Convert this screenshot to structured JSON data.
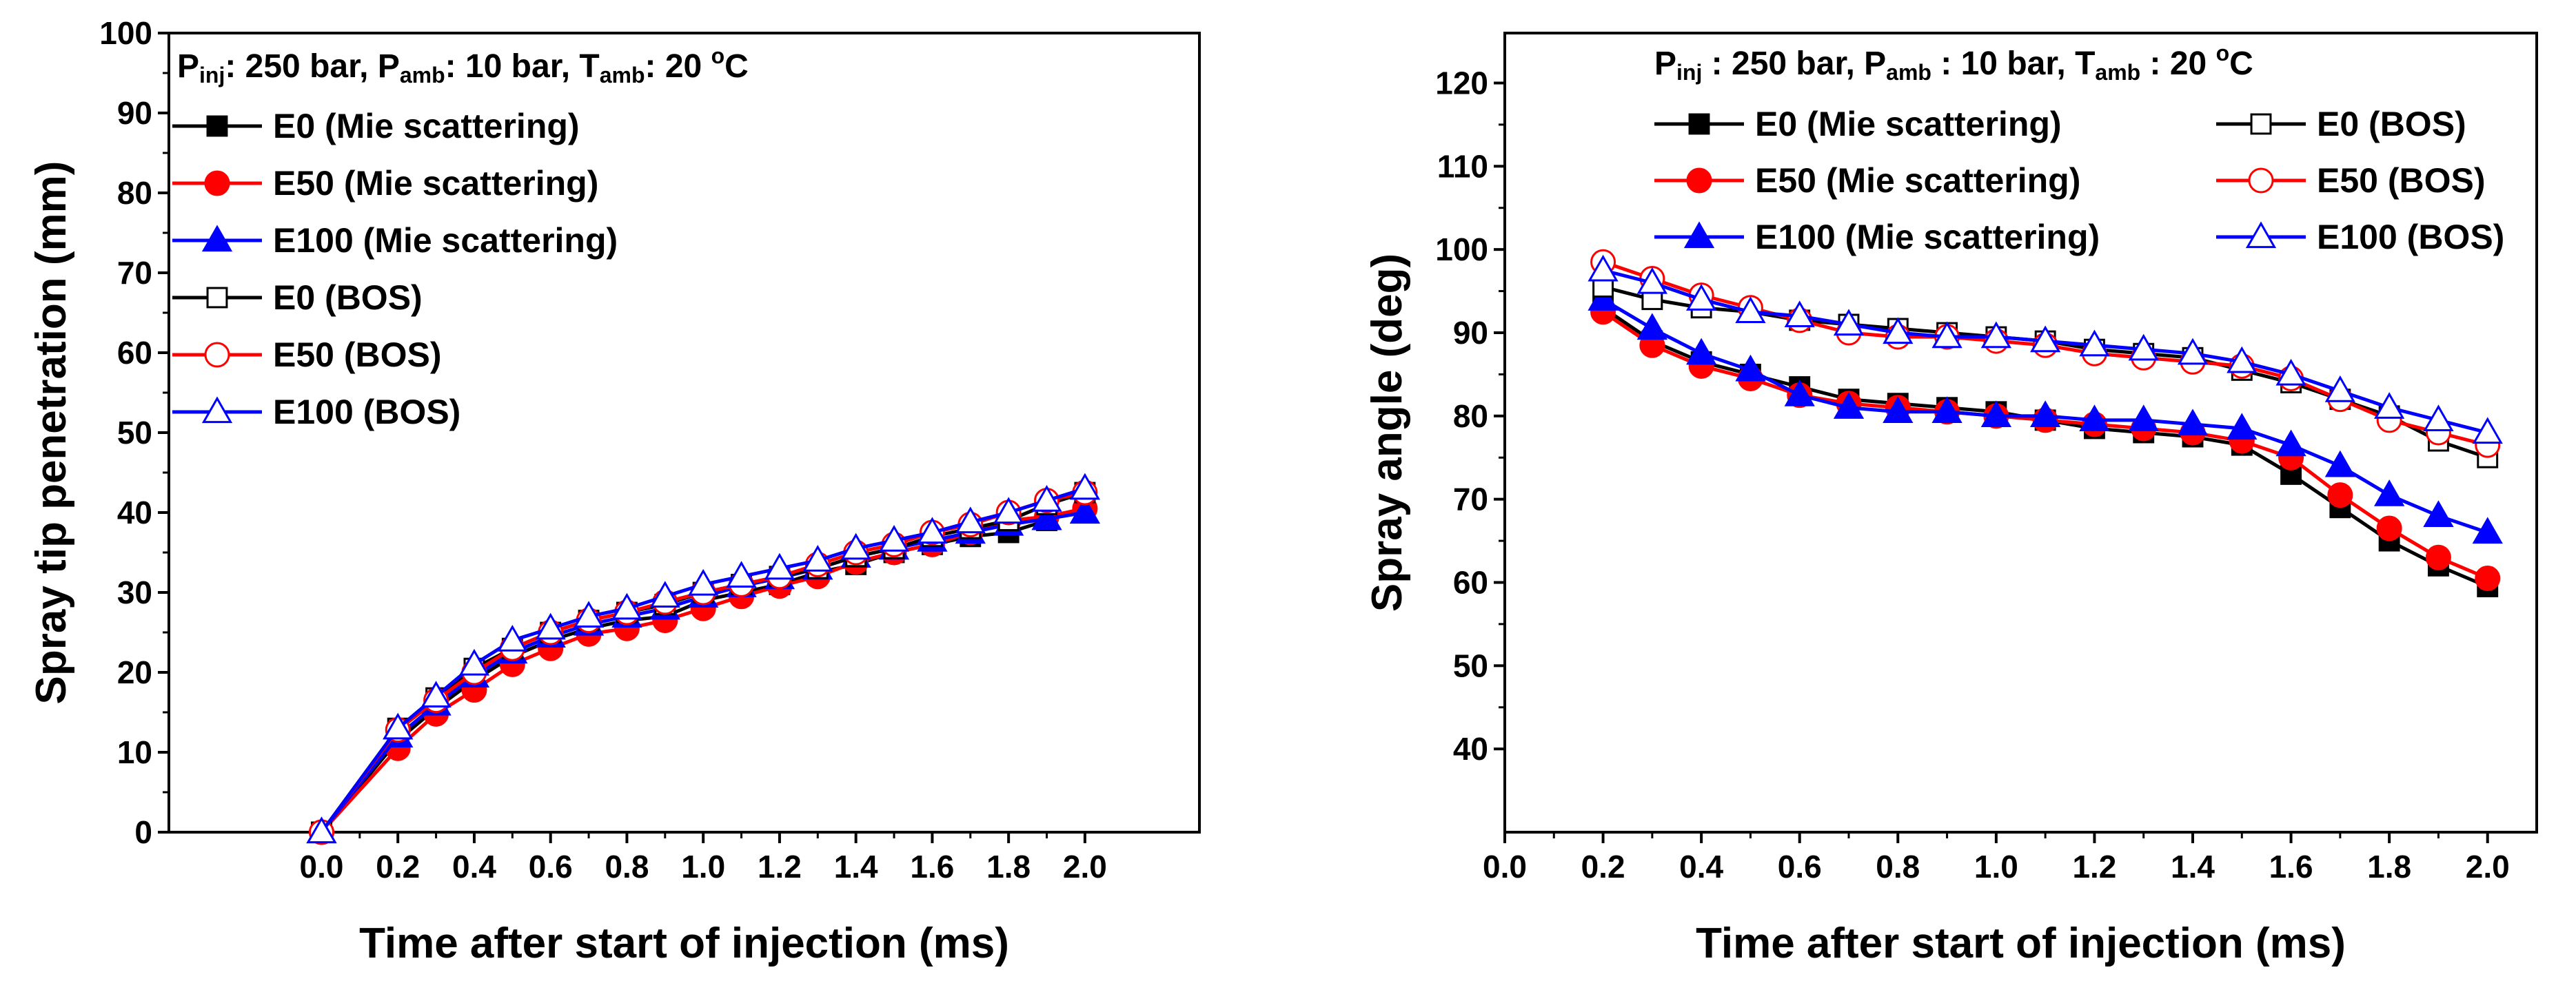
{
  "chart_data": [
    {
      "type": "line",
      "xlabel": "Time after start of injection (ms)",
      "ylabel": "Spray tip penetration (mm)",
      "xlim": [
        -0.4,
        2.3
      ],
      "ylim": [
        0,
        100
      ],
      "xticks": [
        "0.0",
        "0.2",
        "0.4",
        "0.6",
        "0.8",
        "1.0",
        "1.2",
        "1.4",
        "1.6",
        "1.8",
        "2.0"
      ],
      "xtick_values": [
        0,
        0.2,
        0.4,
        0.6,
        0.8,
        1.0,
        1.2,
        1.4,
        1.6,
        1.8,
        2.0
      ],
      "yticks": [
        "0",
        "10",
        "20",
        "30",
        "40",
        "50",
        "60",
        "70",
        "80",
        "90",
        "100"
      ],
      "ytick_values": [
        0,
        10,
        20,
        30,
        40,
        50,
        60,
        70,
        80,
        90,
        100
      ],
      "conditions": {
        "p": "P",
        "p_inj_sub": "inj",
        "text1": ": 250 bar, ",
        "p_amb_sub": "amb",
        "text2": ": 10 bar, ",
        "t": "T",
        "t_amb_sub": "amb",
        "text3": ": 20 ",
        "deg": "o",
        "unit": "C"
      },
      "legend_placement": "top-left",
      "x": [
        0,
        0.2,
        0.3,
        0.4,
        0.5,
        0.6,
        0.7,
        0.8,
        0.9,
        1.0,
        1.1,
        1.2,
        1.3,
        1.4,
        1.5,
        1.6,
        1.7,
        1.8,
        1.9,
        2.0
      ],
      "series": [
        {
          "name": "E0 (Mie scattering)",
          "color": "#000000",
          "marker": "square",
          "filled": true,
          "values": [
            0,
            11.5,
            15.5,
            19,
            22,
            24,
            25.5,
            26.5,
            27,
            29,
            30,
            31,
            32.5,
            33.5,
            35,
            36,
            37,
            37.5,
            39,
            40.5
          ]
        },
        {
          "name": "E50 (Mie scattering)",
          "color": "#ff0000",
          "marker": "circle",
          "filled": true,
          "values": [
            0,
            10.5,
            14.8,
            17.8,
            21,
            23,
            24.8,
            25.5,
            26.5,
            28,
            29.5,
            30.8,
            32,
            33.8,
            35,
            36,
            37.5,
            39,
            39.5,
            40.5
          ]
        },
        {
          "name": "E100 (Mie scattering)",
          "color": "#0000ff",
          "marker": "triangle",
          "filled": true,
          "values": [
            0,
            12,
            16,
            19.5,
            22.5,
            24.5,
            26,
            27,
            28,
            29.5,
            30.8,
            31.8,
            33,
            34.5,
            35.5,
            36.5,
            37.5,
            38.5,
            39.2,
            40
          ]
        },
        {
          "name": "E0 (BOS)",
          "color": "#000000",
          "marker": "square",
          "filled": false,
          "values": [
            0,
            13,
            16.8,
            20.5,
            23,
            25,
            26.5,
            27.5,
            28.5,
            30,
            31,
            32,
            33,
            34.5,
            35.5,
            37,
            38,
            39,
            41,
            42.5
          ]
        },
        {
          "name": "E50 (BOS)",
          "color": "#ff0000",
          "marker": "circle",
          "filled": false,
          "values": [
            0,
            12.8,
            16.5,
            20,
            23,
            25,
            26.5,
            27.5,
            28.8,
            30,
            31,
            32,
            33.5,
            35,
            36,
            37.5,
            38.5,
            40,
            41.5,
            42.5
          ]
        },
        {
          "name": "E100 (BOS)",
          "color": "#0000ff",
          "marker": "triangle",
          "filled": false,
          "values": [
            0,
            13,
            17,
            21,
            24,
            25.5,
            27,
            28,
            29.5,
            31,
            32,
            33,
            34,
            35.5,
            36.5,
            37.5,
            38.8,
            40,
            41.5,
            43
          ]
        }
      ]
    },
    {
      "type": "line",
      "xlabel": "Time after start of injection (ms)",
      "ylabel": "Spray angle (deg)",
      "xlim": [
        0,
        2.1
      ],
      "ylim": [
        30,
        126
      ],
      "xticks": [
        "0.0",
        "0.2",
        "0.4",
        "0.6",
        "0.8",
        "1.0",
        "1.2",
        "1.4",
        "1.6",
        "1.8",
        "2.0"
      ],
      "xtick_values": [
        0,
        0.2,
        0.4,
        0.6,
        0.8,
        1.0,
        1.2,
        1.4,
        1.6,
        1.8,
        2.0
      ],
      "yticks": [
        "40",
        "50",
        "60",
        "70",
        "80",
        "90",
        "100",
        "110",
        "120"
      ],
      "ytick_values": [
        40,
        50,
        60,
        70,
        80,
        90,
        100,
        110,
        120
      ],
      "conditions": {
        "p": "P",
        "p_inj_sub": "inj",
        "text1": " : 250 bar, ",
        "p_amb_sub": "amb",
        "text2": " : 10 bar, ",
        "t": "T",
        "t_amb_sub": "amb",
        "text3": " : 20 ",
        "deg": "o",
        "unit": "C"
      },
      "legend_placement": "top, two columns",
      "x": [
        0.2,
        0.3,
        0.4,
        0.5,
        0.6,
        0.7,
        0.8,
        0.9,
        1.0,
        1.1,
        1.2,
        1.3,
        1.4,
        1.5,
        1.6,
        1.7,
        1.8,
        1.9,
        2.0
      ],
      "series": [
        {
          "name": "E0 (Mie scattering)",
          "color": "#000000",
          "marker": "square",
          "filled": true,
          "values": [
            93,
            89,
            86.5,
            85,
            83.5,
            82,
            81.5,
            81,
            80.5,
            79.5,
            78.5,
            78,
            77.5,
            76.5,
            73,
            69,
            65,
            62,
            59.5
          ]
        },
        {
          "name": "E50 (Mie scattering)",
          "color": "#ff0000",
          "marker": "circle",
          "filled": true,
          "values": [
            92.5,
            88.5,
            86,
            84.5,
            82.5,
            81.5,
            81,
            80.5,
            80,
            79.5,
            79,
            78.5,
            78,
            77,
            75,
            70.5,
            66.5,
            63,
            60.5
          ]
        },
        {
          "name": "E100 (Mie scattering)",
          "color": "#0000ff",
          "marker": "triangle",
          "filled": true,
          "values": [
            94,
            90.5,
            87.5,
            85.5,
            82.5,
            81,
            80.5,
            80.5,
            80,
            80,
            79.5,
            79.5,
            79,
            78.5,
            76.5,
            74,
            70.5,
            68,
            66
          ]
        },
        {
          "name": "E0 (BOS)",
          "color": "#000000",
          "marker": "square",
          "filled": false,
          "values": [
            95.5,
            94,
            93,
            92.5,
            91.5,
            91,
            90.5,
            90,
            89.5,
            89,
            88,
            87.5,
            87,
            85.5,
            84,
            82,
            80,
            77,
            75
          ]
        },
        {
          "name": "E50 (BOS)",
          "color": "#ff0000",
          "marker": "circle",
          "filled": false,
          "values": [
            98.5,
            96.5,
            94.5,
            93,
            91.5,
            90,
            89.5,
            89.5,
            89,
            88.5,
            87.5,
            87,
            86.5,
            86,
            84.5,
            82,
            79.5,
            78,
            76.5
          ]
        },
        {
          "name": "E100 (BOS)",
          "color": "#0000ff",
          "marker": "triangle",
          "filled": false,
          "values": [
            97.5,
            96,
            94,
            92.5,
            92,
            91,
            90,
            89.5,
            89.5,
            89,
            88.5,
            88,
            87.5,
            86.5,
            85,
            83,
            81,
            79.5,
            78
          ]
        }
      ]
    }
  ]
}
